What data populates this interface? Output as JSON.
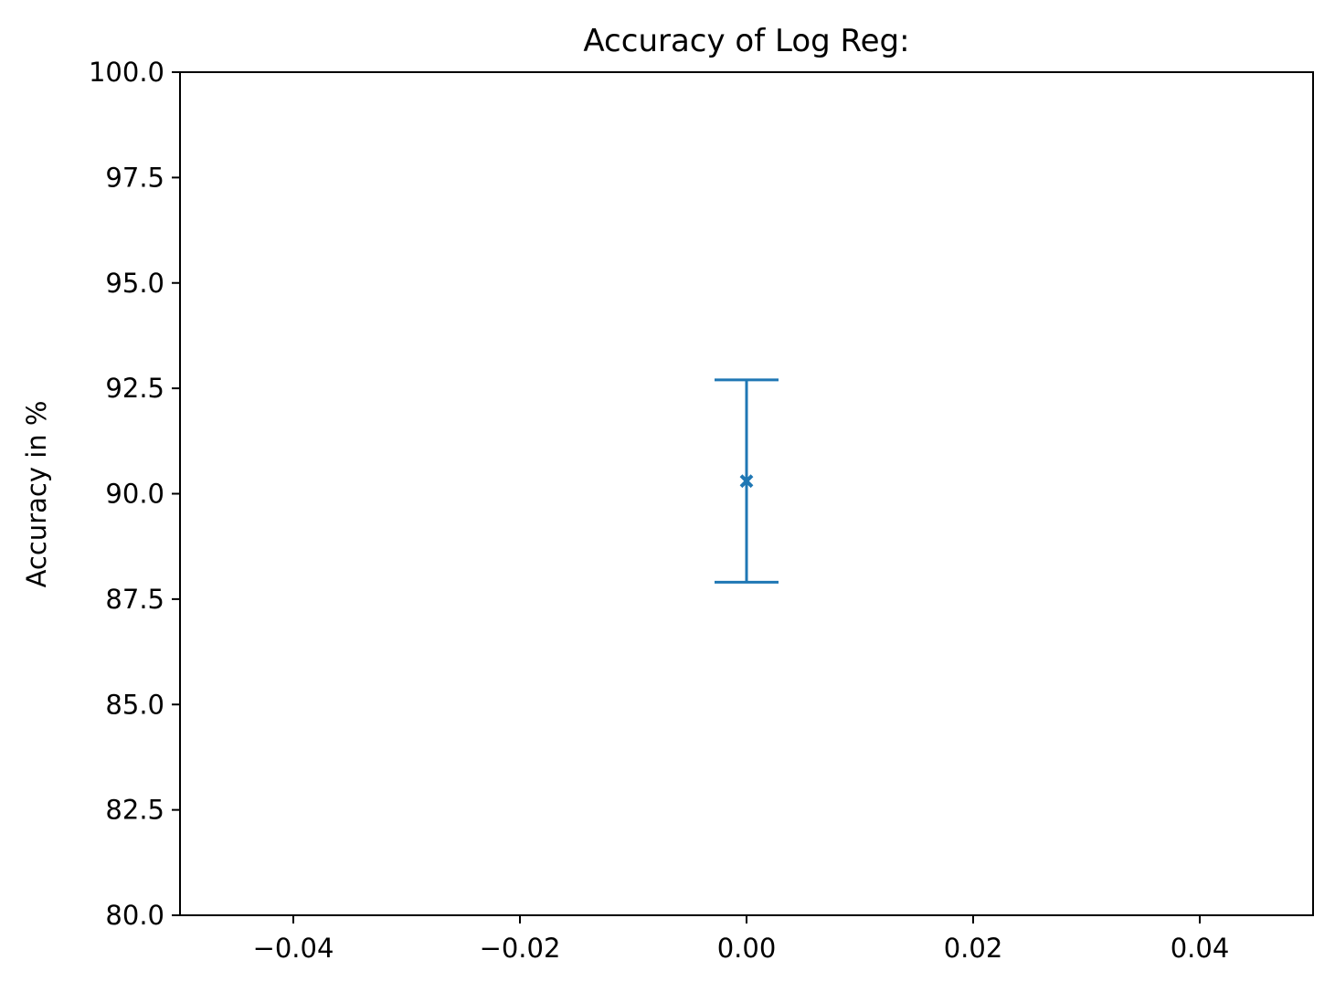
{
  "chart_data": {
    "type": "scatter",
    "title": "Accuracy of Log Reg:",
    "xlabel": "",
    "ylabel": "Accuracy in %",
    "xlim": [
      -0.05,
      0.05
    ],
    "ylim": [
      80.0,
      100.0
    ],
    "xticks": [
      -0.04,
      -0.02,
      0.0,
      0.02,
      0.04
    ],
    "xtick_labels": [
      "−0.04",
      "−0.02",
      "0.00",
      "0.02",
      "0.04"
    ],
    "yticks": [
      80.0,
      82.5,
      85.0,
      87.5,
      90.0,
      92.5,
      95.0,
      97.5,
      100.0
    ],
    "ytick_labels": [
      "80.0",
      "82.5",
      "85.0",
      "87.5",
      "90.0",
      "92.5",
      "95.0",
      "97.5",
      "100.0"
    ],
    "grid": false,
    "series": [
      {
        "marker": "x",
        "color": "#1f77b4",
        "points": [
          {
            "x": 0.0,
            "y": 90.3,
            "yerr_low": 87.9,
            "yerr_high": 92.7
          }
        ]
      }
    ]
  }
}
